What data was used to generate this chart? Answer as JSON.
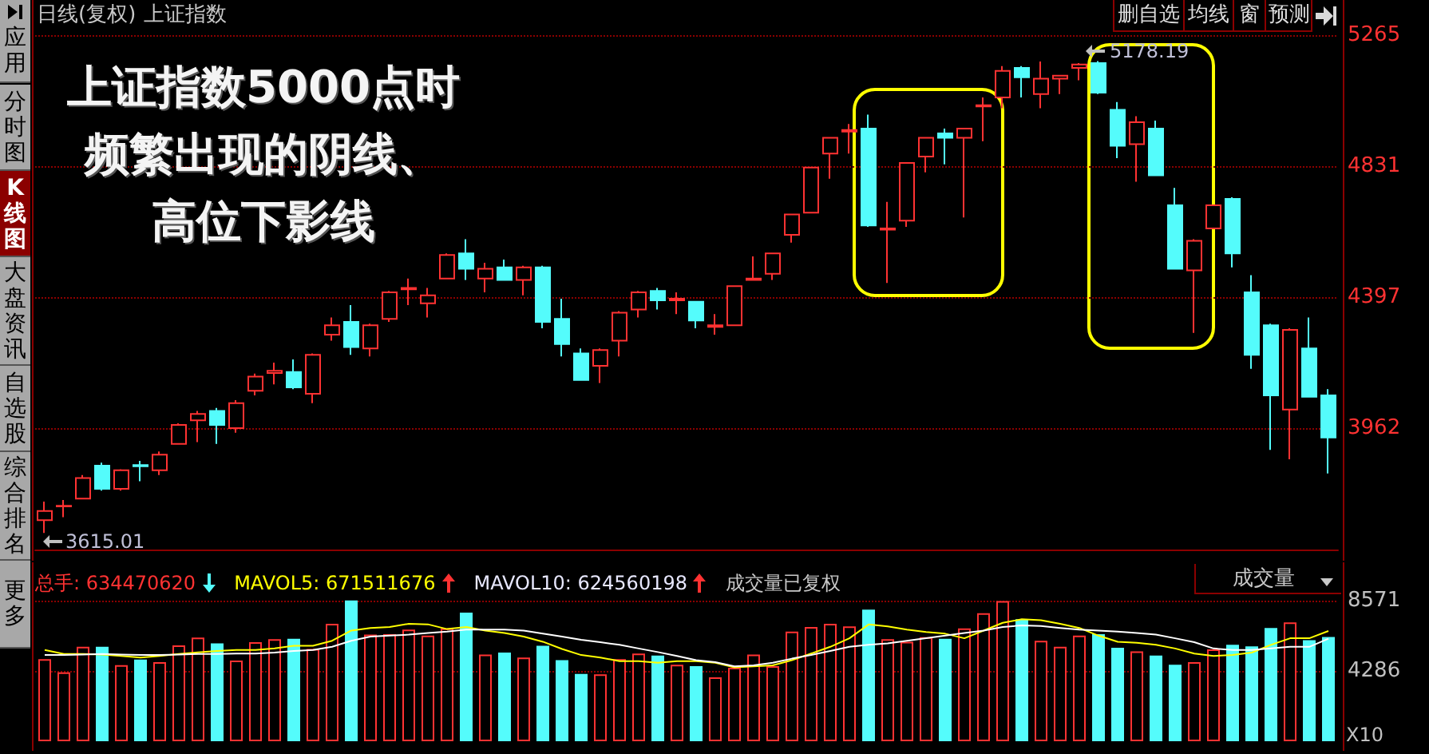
{
  "chart_data": [
    {
      "type": "candlestick",
      "title": "上证指数5000点时频繁出现的阴线、高位下影线",
      "categories": [
        null,
        null,
        null,
        null,
        null,
        null,
        null,
        null,
        null,
        null,
        null,
        null,
        null,
        null,
        null,
        null,
        null,
        null,
        null,
        null,
        null,
        null,
        null,
        null,
        null,
        null,
        null,
        null,
        null,
        null,
        null,
        null,
        null,
        null,
        null,
        null,
        null,
        null,
        null,
        null,
        null,
        null,
        null,
        null,
        null,
        null,
        null,
        null,
        null,
        null,
        null,
        null,
        null,
        null,
        null,
        null,
        null,
        null,
        null,
        null,
        null,
        null,
        null,
        null,
        null,
        null,
        null,
        null
      ],
      "series": [
        {
          "type": "candlestick",
          "ohlc": [
            [
              3657,
              3719,
              3615.01,
              3688
            ],
            [
              3703,
              3724,
              3667,
              3705
            ],
            [
              3729,
              3807,
              3729,
              3797
            ],
            [
              3838,
              3848,
              3755,
              3761
            ],
            [
              3761,
              3826,
              3755,
              3823
            ],
            [
              3840,
              3854,
              3786,
              3836
            ],
            [
              3823,
              3885,
              3807,
              3874
            ],
            [
              3910,
              3978,
              3910,
              3973
            ],
            [
              3988,
              4019,
              3916,
              4009
            ],
            [
              4019,
              4029,
              3910,
              3973
            ],
            [
              3962,
              4055,
              3947,
              4045
            ],
            [
              4086,
              4143,
              4071,
              4133
            ],
            [
              4145,
              4179,
              4107,
              4152
            ],
            [
              4148,
              4190,
              4091,
              4097
            ],
            [
              4076,
              4210,
              4045,
              4205
            ],
            [
              4272,
              4329,
              4252,
              4303
            ],
            [
              4314,
              4370,
              4205,
              4231
            ],
            [
              4226,
              4308,
              4200,
              4303
            ],
            [
              4324,
              4417,
              4314,
              4412
            ],
            [
              4422,
              4458,
              4370,
              4427
            ],
            [
              4376,
              4427,
              4329,
              4402
            ],
            [
              4458,
              4541,
              4458,
              4536
            ],
            [
              4541,
              4588,
              4453,
              4490
            ],
            [
              4458,
              4510,
              4412,
              4490
            ],
            [
              4495,
              4521,
              4453,
              4453
            ],
            [
              4453,
              4500,
              4402,
              4495
            ],
            [
              4495,
              4500,
              4293,
              4314
            ],
            [
              4324,
              4391,
              4200,
              4241
            ],
            [
              4210,
              4226,
              4122,
              4122
            ],
            [
              4169,
              4226,
              4112,
              4221
            ],
            [
              4252,
              4350,
              4200,
              4345
            ],
            [
              4355,
              4417,
              4329,
              4412
            ],
            [
              4417,
              4427,
              4355,
              4386
            ],
            [
              4386,
              4412,
              4340,
              4391
            ],
            [
              4381,
              4381,
              4293,
              4319
            ],
            [
              4298,
              4340,
              4272,
              4303
            ],
            [
              4303,
              4433,
              4303,
              4433
            ],
            [
              4453,
              4531,
              4453,
              4458
            ],
            [
              4474,
              4541,
              4453,
              4541
            ],
            [
              4603,
              4670,
              4577,
              4670
            ],
            [
              4676,
              4826,
              4676,
              4826
            ],
            [
              4872,
              4924,
              4789,
              4924
            ],
            [
              4945,
              4970,
              4872,
              4950
            ],
            [
              4955,
              5001,
              4629,
              4634
            ],
            [
              4620,
              4712,
              4443,
              4624
            ],
            [
              4650,
              4841,
              4629,
              4841
            ],
            [
              4862,
              4924,
              4810,
              4924
            ],
            [
              4939,
              4955,
              4836,
              4924
            ],
            [
              4924,
              4955,
              4660,
              4955
            ],
            [
              5028,
              5058,
              4913,
              5032
            ],
            [
              5058,
              5162,
              5022,
              5146
            ],
            [
              5156,
              5162,
              5058,
              5125
            ],
            [
              5069,
              5177,
              5022,
              5120
            ],
            [
              5120,
              5130,
              5069,
              5130
            ],
            [
              5156,
              5172,
              5115,
              5167
            ],
            [
              5172,
              5178.19,
              5069,
              5074
            ],
            [
              5017,
              5043,
              4857,
              4898
            ],
            [
              4903,
              4996,
              4779,
              4976
            ],
            [
              4955,
              4981,
              4800,
              4800
            ],
            [
              4701,
              4758,
              4490,
              4490
            ],
            [
              4485,
              4588,
              4278,
              4583
            ],
            [
              4624,
              4701,
              4624,
              4701
            ],
            [
              4722,
              4727,
              4495,
              4541
            ],
            [
              4412,
              4469,
              4159,
              4205
            ],
            [
              4303,
              4308,
              3890,
              4071
            ],
            [
              4024,
              4293,
              3859,
              4288
            ],
            [
              4226,
              4329,
              4066,
              4066
            ],
            [
              4071,
              4091,
              3812,
              3931
            ]
          ],
          "colors": [
            "#ff3232",
            "#ff3232",
            "#ff3232",
            "#54fcfc",
            "#ff3232",
            "#54fcfc",
            "#ff3232",
            "#ff3232",
            "#ff3232",
            "#54fcfc",
            "#ff3232",
            "#ff3232",
            "#ff3232",
            "#54fcfc",
            "#ff3232",
            "#ff3232",
            "#54fcfc",
            "#ff3232",
            "#ff3232",
            "#ff3232",
            "#ff3232",
            "#ff3232",
            "#54fcfc",
            "#ff3232",
            "#54fcfc",
            "#ff3232",
            "#54fcfc",
            "#54fcfc",
            "#54fcfc",
            "#ff3232",
            "#ff3232",
            "#ff3232",
            "#54fcfc",
            "#ff3232",
            "#54fcfc",
            "#ff3232",
            "#ff3232",
            "#ff3232",
            "#ff3232",
            "#ff3232",
            "#ff3232",
            "#ff3232",
            "#ff3232",
            "#54fcfc",
            "#ff3232",
            "#ff3232",
            "#ff3232",
            "#54fcfc",
            "#ff3232",
            "#ff3232",
            "#ff3232",
            "#54fcfc",
            "#ff3232",
            "#ff3232",
            "#ff3232",
            "#54fcfc",
            "#54fcfc",
            "#ff3232",
            "#54fcfc",
            "#54fcfc",
            "#ff3232",
            "#ff3232",
            "#54fcfc",
            "#54fcfc",
            "#54fcfc",
            "#ff3232",
            "#54fcfc",
            "#54fcfc"
          ]
        }
      ],
      "ylim": [
        3560,
        5275
      ],
      "yticks": [
        3962,
        4397,
        4831,
        5265
      ],
      "grid": "y",
      "annotations": [
        "日线(复权)",
        "上证指数",
        "删自选",
        "均线",
        "窗",
        "预测",
        "应用",
        "分时图",
        "K线图",
        "大盘资讯",
        "自选股",
        "综合排名",
        "更多",
        "3615.01",
        "5178.19"
      ]
    },
    {
      "type": "bar",
      "categories": [
        null,
        null,
        null,
        null,
        null,
        null,
        null,
        null,
        null,
        null,
        null,
        null,
        null,
        null,
        null,
        null,
        null,
        null,
        null,
        null,
        null,
        null,
        null,
        null,
        null,
        null,
        null,
        null,
        null,
        null,
        null,
        null,
        null,
        null,
        null,
        null,
        null,
        null,
        null,
        null,
        null,
        null,
        null,
        null,
        null,
        null,
        null,
        null,
        null,
        null,
        null,
        null,
        null,
        null,
        null,
        null,
        null,
        null,
        null,
        null,
        null,
        null,
        null,
        null,
        null,
        null,
        null,
        null
      ],
      "series": [
        {
          "type": "bar",
          "values": [
            5000,
            4190,
            5750,
            5750,
            4630,
            4970,
            4820,
            5840,
            6310,
            5960,
            4910,
            6030,
            6210,
            6240,
            5620,
            7150,
            8570,
            6500,
            6520,
            6800,
            6430,
            6870,
            7830,
            5280,
            5400,
            5100,
            5810,
            4940,
            4100,
            4070,
            5000,
            5340,
            5220,
            4660,
            4570,
            3890,
            4470,
            5280,
            4570,
            6680,
            6960,
            7150,
            6990,
            8010,
            6210,
            6060,
            6340,
            6240,
            6870,
            7800,
            8540,
            7430,
            6120,
            5750,
            6430,
            6520,
            5690,
            5470,
            5220,
            4660,
            4820,
            5590,
            5870,
            5780,
            6900,
            7240,
            6150,
            6345
          ],
          "colors": [
            "#ff3232",
            "#ff3232",
            "#ff3232",
            "#54fcfc",
            "#ff3232",
            "#54fcfc",
            "#ff3232",
            "#ff3232",
            "#ff3232",
            "#54fcfc",
            "#ff3232",
            "#ff3232",
            "#ff3232",
            "#54fcfc",
            "#ff3232",
            "#ff3232",
            "#54fcfc",
            "#ff3232",
            "#ff3232",
            "#ff3232",
            "#ff3232",
            "#ff3232",
            "#54fcfc",
            "#ff3232",
            "#54fcfc",
            "#ff3232",
            "#54fcfc",
            "#54fcfc",
            "#54fcfc",
            "#ff3232",
            "#ff3232",
            "#ff3232",
            "#54fcfc",
            "#ff3232",
            "#54fcfc",
            "#ff3232",
            "#ff3232",
            "#ff3232",
            "#ff3232",
            "#ff3232",
            "#ff3232",
            "#ff3232",
            "#ff3232",
            "#54fcfc",
            "#ff3232",
            "#ff3232",
            "#ff3232",
            "#54fcfc",
            "#ff3232",
            "#ff3232",
            "#ff3232",
            "#54fcfc",
            "#ff3232",
            "#ff3232",
            "#ff3232",
            "#54fcfc",
            "#54fcfc",
            "#ff3232",
            "#54fcfc",
            "#54fcfc",
            "#ff3232",
            "#ff3232",
            "#54fcfc",
            "#54fcfc",
            "#54fcfc",
            "#ff3232",
            "#54fcfc",
            "#54fcfc"
          ]
        },
        {
          "type": "line",
          "color": "#ffff00",
          "values": [
            5560,
            5310,
            5310,
            5280,
            5190,
            5100,
            5190,
            5310,
            5410,
            5500,
            5560,
            5560,
            5650,
            5810,
            5810,
            6120,
            6740,
            6900,
            6960,
            7150,
            7120,
            6830,
            6960,
            6740,
            6590,
            6370,
            6060,
            5620,
            5250,
            5100,
            4880,
            4880,
            4780,
            4880,
            4880,
            4780,
            4500,
            4560,
            4620,
            4940,
            5340,
            5750,
            6270,
            7110,
            6990,
            6800,
            6650,
            6550,
            6270,
            6740,
            7210,
            7430,
            7370,
            7150,
            6900,
            6430,
            6060,
            6000,
            5870,
            5650,
            5340,
            5190,
            5250,
            5400,
            5870,
            6270,
            6270,
            6715
          ]
        },
        {
          "type": "line",
          "color": "#ffffff",
          "values": [
            5250,
            5250,
            5280,
            5310,
            5280,
            5250,
            5250,
            5280,
            5310,
            5310,
            5340,
            5340,
            5400,
            5500,
            5560,
            5750,
            6120,
            6370,
            6430,
            6490,
            6590,
            6680,
            6800,
            6800,
            6800,
            6740,
            6550,
            6370,
            6180,
            6030,
            5870,
            5650,
            5430,
            5190,
            4940,
            4820,
            4560,
            4620,
            4780,
            5030,
            5250,
            5500,
            5750,
            5870,
            5960,
            6120,
            6270,
            6430,
            6590,
            6740,
            6960,
            7050,
            7020,
            6900,
            6800,
            6740,
            6680,
            6590,
            6490,
            6270,
            6030,
            5650,
            5560,
            5560,
            5650,
            5750,
            5750,
            6246
          ]
        }
      ],
      "ylim": [
        0,
        10800
      ],
      "yticks": [
        4286,
        8571
      ],
      "grid": "y",
      "marker": "none",
      "annotations": [
        "总手: 634470620",
        "MAVOL5: 671511676",
        "MAVOL10: 624560198",
        "成交量已复权",
        "成交量",
        "X10"
      ]
    }
  ]
}
